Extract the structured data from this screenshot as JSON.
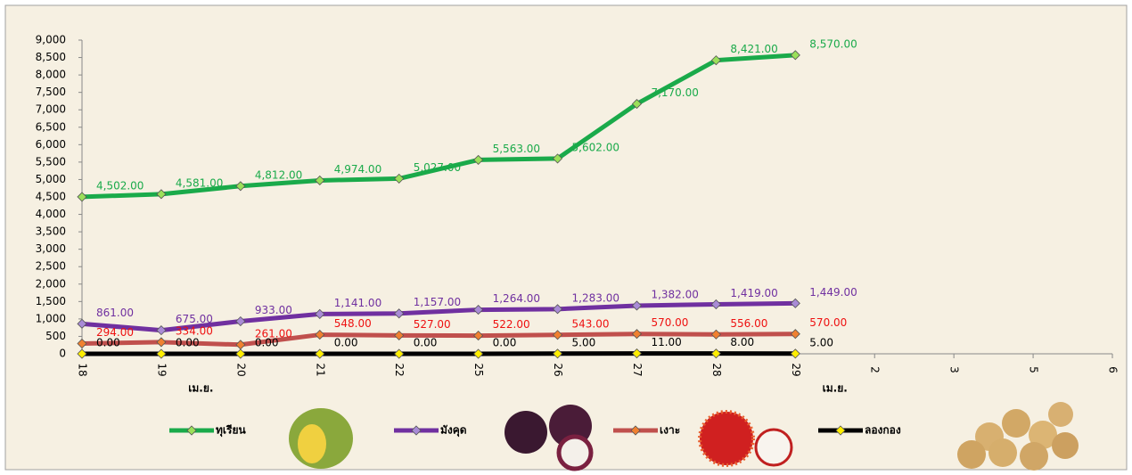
{
  "chart_data": {
    "type": "line",
    "categories": [
      "18",
      "19",
      "20",
      "21",
      "22",
      "25",
      "26",
      "27",
      "28",
      "29",
      "2",
      "3",
      "5",
      "6"
    ],
    "month_labels": [
      "เม.ย.",
      "เม.ย."
    ],
    "ylim": [
      0,
      9000
    ],
    "yticks": [
      0,
      500,
      {
        "value": 1000,
        "label": "1,000"
      },
      {
        "value": 1500,
        "label": "1,500"
      },
      {
        "value": 2000,
        "label": "2,000"
      },
      {
        "value": 2500,
        "label": "2,500"
      },
      {
        "value": 3000,
        "label": "3,000"
      },
      {
        "value": 3500,
        "label": "3,500"
      },
      {
        "value": 4000,
        "label": "4,000"
      },
      {
        "value": 4500,
        "label": "4,500"
      },
      {
        "value": 5000,
        "label": "5,000"
      },
      {
        "value": 5500,
        "label": "5,500"
      },
      {
        "value": 6000,
        "label": "6,000"
      },
      {
        "value": 6500,
        "label": "6,500"
      },
      {
        "value": 7000,
        "label": "7,000"
      },
      {
        "value": 7500,
        "label": "7,500"
      },
      {
        "value": 8000,
        "label": "8,000"
      },
      {
        "value": 8500,
        "label": "8,500"
      },
      {
        "value": 9000,
        "label": "9,000"
      }
    ],
    "legend": "bottom",
    "series": [
      {
        "name": "ทุเรียน",
        "color": "#1aaa4a",
        "label_color": "#1aaa4a",
        "marker": "#9be05a",
        "values": [
          4502,
          4581,
          4812,
          4974,
          5027,
          5563,
          5602,
          7170,
          8421,
          8570,
          null,
          null,
          null,
          null
        ],
        "value_labels": [
          "4,502.00",
          "4,581.00",
          "4,812.00",
          "4,974.00",
          "5,027.00",
          "5,563.00",
          "5,602.00",
          "7,170.00",
          "8,421.00",
          "8,570.00",
          null,
          null,
          null,
          null
        ]
      },
      {
        "name": "มังคุด",
        "color": "#7030a0",
        "label_color": "#7030a0",
        "marker": "#a98bd6",
        "values": [
          861,
          675,
          933,
          1141,
          1157,
          1264,
          1283,
          1382,
          1419,
          1449,
          null,
          null,
          null,
          null
        ],
        "value_labels": [
          "861.00",
          "675.00",
          "933.00",
          "1,141.00",
          "1,157.00",
          "1,264.00",
          "1,283.00",
          "1,382.00",
          "1,419.00",
          "1,449.00",
          null,
          null,
          null,
          null
        ]
      },
      {
        "name": "เงาะ",
        "color": "#c0504d",
        "label_color": "#ee1111",
        "marker": "#f08030",
        "values": [
          294,
          334,
          261,
          548,
          527,
          522,
          543,
          570,
          556,
          570,
          null,
          null,
          null,
          null
        ],
        "value_labels": [
          "294.00",
          "334.00",
          "261.00",
          "548.00",
          "527.00",
          "522.00",
          "543.00",
          "570.00",
          "556.00",
          "570.00",
          null,
          null,
          null,
          null
        ]
      },
      {
        "name": "ลองกอง",
        "color": "#000000",
        "label_color": "#000000",
        "marker": "#ffee00",
        "values": [
          0,
          0,
          0,
          0,
          0,
          0,
          5,
          11,
          8,
          5,
          null,
          null,
          null,
          null
        ],
        "value_labels": [
          "0.00",
          "0.00",
          "0.00",
          "0.00",
          "0.00",
          "0.00",
          "5.00",
          "11.00",
          "8.00",
          "5.00",
          null,
          null,
          null,
          null
        ]
      }
    ]
  }
}
